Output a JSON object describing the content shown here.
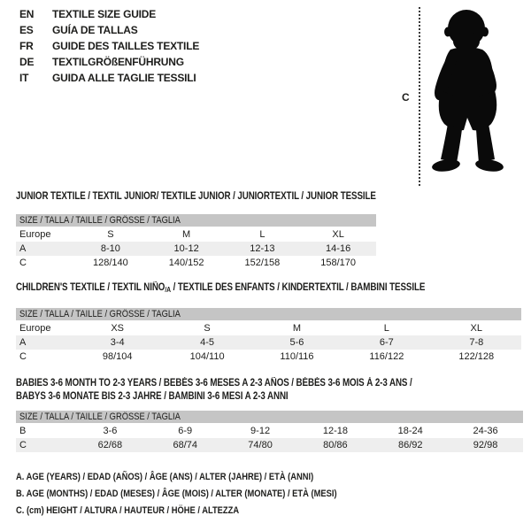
{
  "page": {
    "background": "#ffffff",
    "text_color": "#1d1d1b",
    "table_header_bg": "#c5c5c5",
    "table_alt_row_bg": "#eeeeee",
    "silhouette_color": "#0a0a0a"
  },
  "language_guide": {
    "items": [
      {
        "code": "EN",
        "label": "TEXTILE SIZE GUIDE"
      },
      {
        "code": "ES",
        "label": "GUÍA DE TALLAS"
      },
      {
        "code": "FR",
        "label": "GUIDE DES TAILLES TEXTILE"
      },
      {
        "code": "DE",
        "label": "TEXTILGRÖßENFÜHRUNG"
      },
      {
        "code": "IT",
        "label": "GUIDA ALLE TAGLIE TESSILI"
      }
    ]
  },
  "figure": {
    "height_label": "C",
    "image_name": "toddler-silhouette"
  },
  "sections": {
    "junior": {
      "title": "JUNIOR TEXTILE / TEXTIL JUNIOR/ TEXTILE JUNIOR / JUNIORTEXTIL / JUNIOR TESSILE",
      "size_header": "SIZE / TALLA / TAILLE / GRÖSSE / TAGLIA",
      "rows": [
        [
          "Europe",
          "S",
          "M",
          "L",
          "XL"
        ],
        [
          "A",
          "8-10",
          "10-12",
          "12-13",
          "14-16"
        ],
        [
          "C",
          "128/140",
          "140/152",
          "152/158",
          "158/170"
        ]
      ]
    },
    "children": {
      "title_pre": "CHILDREN'S TEXTILE / TEXTIL NIÑO",
      "title_sub": "/A",
      "title_post": " / TEXTILE DES ENFANTS / KINDERTEXTIL / BAMBINI TESSILE",
      "size_header": "SIZE / TALLA / TAILLE / GRÖSSE / TAGLIA",
      "rows": [
        [
          "Europe",
          "XS",
          "S",
          "M",
          "L",
          "XL"
        ],
        [
          "A",
          "3-4",
          "4-5",
          "5-6",
          "6-7",
          "7-8"
        ],
        [
          "C",
          "98/104",
          "104/110",
          "110/116",
          "116/122",
          "122/128"
        ]
      ]
    },
    "babies": {
      "title_line1": "BABIES 3-6 MONTH TO 2-3 YEARS / BEBÉS 3-6 MESES A 2-3 AÑOS / BÉBÉS 3-6 MOIS À 2-3 ANS /",
      "title_line2": "BABYS 3-6 MONATE BIS 2-3 JAHRE / BAMBINI 3-6 MESI A 2-3 ANNI",
      "size_header": "SIZE / TALLA / TAILLE / GRÖSSE / TAGLIA",
      "rows": [
        [
          "B",
          "3-6",
          "6-9",
          "9-12",
          "12-18",
          "18-24",
          "24-36"
        ],
        [
          "C",
          "62/68",
          "68/74",
          "74/80",
          "80/86",
          "86/92",
          "92/98"
        ]
      ]
    }
  },
  "legend": {
    "lines": [
      "A. AGE (YEARS) / EDAD (AÑOS) / ÂGE (ANS) / ALTER (JAHRE) / ETÀ (ANNI)",
      "B. AGE (MONTHS) / EDAD (MESES) / ÂGE (MOIS) / ALTER (MONATE) / ETÀ (MESI)",
      "C. (cm) HEIGHT / ALTURA / HAUTEUR / HÖHE / ALTEZZA"
    ]
  }
}
